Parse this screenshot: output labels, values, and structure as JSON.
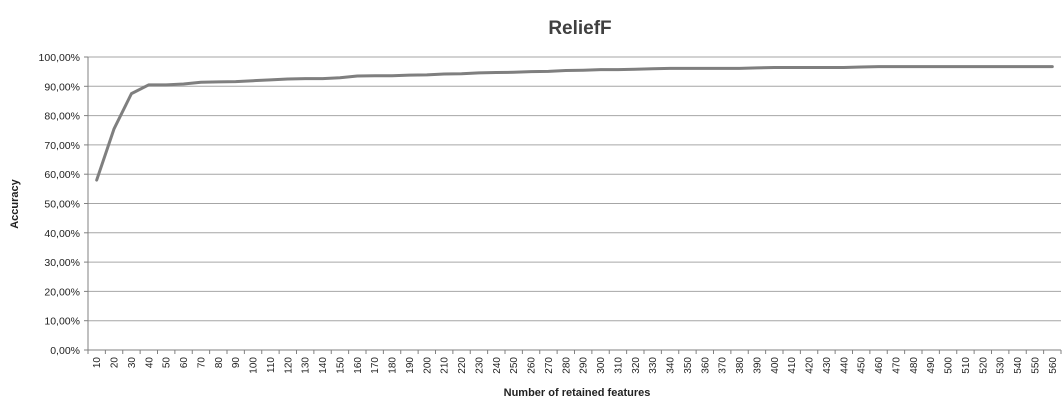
{
  "chart_data": {
    "type": "line",
    "title": "ReliefF",
    "xlabel": "Number of retained features",
    "ylabel": "Accuracy",
    "ylim": [
      0,
      100
    ],
    "yticks": [
      "0,00%",
      "10,00%",
      "20,00%",
      "30,00%",
      "40,00%",
      "50,00%",
      "60,00%",
      "70,00%",
      "80,00%",
      "90,00%",
      "100,00%"
    ],
    "grid": true,
    "legend": "none",
    "line_color": "#7f7f7f",
    "x": [
      10,
      20,
      30,
      40,
      50,
      60,
      70,
      80,
      90,
      100,
      110,
      120,
      130,
      140,
      150,
      160,
      170,
      180,
      190,
      200,
      210,
      220,
      230,
      240,
      250,
      260,
      270,
      280,
      290,
      300,
      310,
      320,
      330,
      340,
      350,
      360,
      370,
      380,
      390,
      400,
      410,
      420,
      430,
      440,
      450,
      460,
      470,
      480,
      490,
      500,
      510,
      520,
      530,
      540,
      550,
      560
    ],
    "series": [
      {
        "values": [
          58.0,
          75.5,
          87.5,
          90.5,
          90.5,
          90.8,
          91.4,
          91.5,
          91.6,
          91.9,
          92.2,
          92.5,
          92.6,
          92.6,
          92.9,
          93.5,
          93.6,
          93.6,
          93.8,
          93.9,
          94.2,
          94.3,
          94.6,
          94.7,
          94.8,
          95.0,
          95.1,
          95.4,
          95.5,
          95.7,
          95.7,
          95.8,
          96.0,
          96.1,
          96.1,
          96.1,
          96.1,
          96.1,
          96.3,
          96.4,
          96.4,
          96.4,
          96.4,
          96.4,
          96.6,
          96.7,
          96.7,
          96.7,
          96.7,
          96.7,
          96.7,
          96.7,
          96.7,
          96.7,
          96.7,
          96.7
        ]
      }
    ]
  }
}
